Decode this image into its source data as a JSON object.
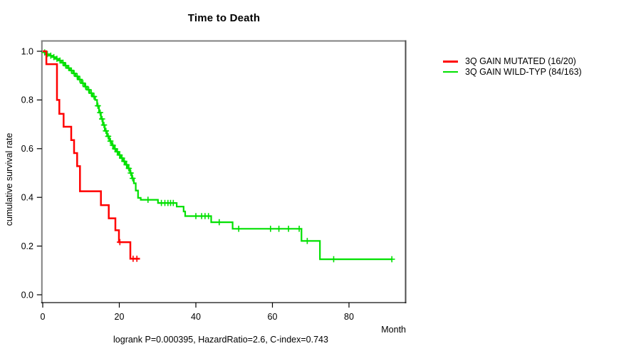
{
  "figure": {
    "title": "Time to Death",
    "x_axis_label": "Month",
    "y_axis_label": "cumulative survival rate",
    "annotation": "logrank P=0.000395, HazardRatio=2.6, C-index=0.743"
  },
  "legend": {
    "items": [
      {
        "label": "3Q GAIN MUTATED (16/20)",
        "color": "#ff0000"
      },
      {
        "label": "3Q GAIN WILD-TYP (84/163)",
        "color": "#00e000"
      }
    ]
  },
  "chart_data": {
    "type": "line",
    "subtype": "kaplan-meier-step",
    "title": "Time to Death",
    "xlabel": "Month",
    "ylabel": "cumulative survival rate",
    "stats_annotation": "logrank P=0.000395, HazardRatio=2.6, C-index=0.743",
    "xlim": [
      0,
      95
    ],
    "ylim": [
      0,
      1.0
    ],
    "x_ticks": [
      0,
      20,
      40,
      60,
      80
    ],
    "x_tick_labels": [
      "0",
      "20",
      "40",
      "60",
      "80"
    ],
    "y_ticks": [
      0.0,
      0.2,
      0.4,
      0.6,
      0.8,
      1.0
    ],
    "y_tick_labels": [
      "0.0",
      "0.2",
      "0.4",
      "0.6",
      "0.8",
      "1.0"
    ],
    "grid": false,
    "legend_position": "outside-top-right",
    "series": [
      {
        "name": "3Q GAIN WILD-TYP (84/163)",
        "color": "#00e000",
        "line_width": 2.2,
        "steps": [
          [
            0,
            1.0
          ],
          [
            0.45,
            0.995
          ],
          [
            0.9,
            0.988
          ],
          [
            1.7,
            0.982
          ],
          [
            2.5,
            0.976
          ],
          [
            3.3,
            0.969
          ],
          [
            4.1,
            0.962
          ],
          [
            4.9,
            0.953
          ],
          [
            5.7,
            0.941
          ],
          [
            6.4,
            0.931
          ],
          [
            7.1,
            0.921
          ],
          [
            7.9,
            0.909
          ],
          [
            8.6,
            0.897
          ],
          [
            9.3,
            0.884
          ],
          [
            10.1,
            0.869
          ],
          [
            10.9,
            0.855
          ],
          [
            11.6,
            0.842
          ],
          [
            12.3,
            0.828
          ],
          [
            13.0,
            0.814
          ],
          [
            13.7,
            0.8
          ],
          [
            14.2,
            0.776
          ],
          [
            14.7,
            0.748
          ],
          [
            15.2,
            0.722
          ],
          [
            15.7,
            0.697
          ],
          [
            16.2,
            0.673
          ],
          [
            16.8,
            0.651
          ],
          [
            17.4,
            0.631
          ],
          [
            18.0,
            0.614
          ],
          [
            18.6,
            0.599
          ],
          [
            19.2,
            0.587
          ],
          [
            19.8,
            0.574
          ],
          [
            20.4,
            0.561
          ],
          [
            21.0,
            0.548
          ],
          [
            21.6,
            0.534
          ],
          [
            22.2,
            0.519
          ],
          [
            22.8,
            0.5
          ],
          [
            23.3,
            0.478
          ],
          [
            23.8,
            0.458
          ],
          [
            24.3,
            0.428
          ],
          [
            24.9,
            0.398
          ],
          [
            25.6,
            0.39
          ],
          [
            30.1,
            0.377
          ],
          [
            35.0,
            0.362
          ],
          [
            36.8,
            0.342
          ],
          [
            37.2,
            0.323
          ],
          [
            44.0,
            0.298
          ],
          [
            49.6,
            0.271
          ],
          [
            67.6,
            0.221
          ],
          [
            72.4,
            0.146
          ]
        ],
        "end_month": 91.2,
        "censors": [
          [
            0.5,
            0.995
          ],
          [
            1.2,
            0.988
          ],
          [
            2.1,
            0.982
          ],
          [
            2.9,
            0.976
          ],
          [
            3.7,
            0.969
          ],
          [
            4.5,
            0.962
          ],
          [
            5.3,
            0.953
          ],
          [
            6.0,
            0.941
          ],
          [
            6.8,
            0.931
          ],
          [
            7.5,
            0.921
          ],
          [
            8.2,
            0.909
          ],
          [
            9.0,
            0.897
          ],
          [
            9.7,
            0.884
          ],
          [
            10.5,
            0.869
          ],
          [
            11.2,
            0.855
          ],
          [
            12.0,
            0.842
          ],
          [
            12.7,
            0.828
          ],
          [
            13.4,
            0.814
          ],
          [
            14.4,
            0.776
          ],
          [
            15.0,
            0.748
          ],
          [
            15.5,
            0.722
          ],
          [
            16.0,
            0.697
          ],
          [
            16.5,
            0.673
          ],
          [
            17.1,
            0.651
          ],
          [
            17.7,
            0.631
          ],
          [
            18.3,
            0.614
          ],
          [
            18.9,
            0.599
          ],
          [
            19.5,
            0.587
          ],
          [
            20.1,
            0.574
          ],
          [
            20.7,
            0.561
          ],
          [
            21.3,
            0.548
          ],
          [
            21.9,
            0.534
          ],
          [
            22.5,
            0.519
          ],
          [
            23.0,
            0.5
          ],
          [
            23.5,
            0.478
          ],
          [
            27.5,
            0.39
          ],
          [
            31.0,
            0.377
          ],
          [
            31.9,
            0.377
          ],
          [
            32.7,
            0.377
          ],
          [
            33.4,
            0.377
          ],
          [
            34.1,
            0.377
          ],
          [
            40.0,
            0.323
          ],
          [
            41.5,
            0.323
          ],
          [
            42.4,
            0.323
          ],
          [
            43.3,
            0.323
          ],
          [
            46.1,
            0.298
          ],
          [
            51.2,
            0.271
          ],
          [
            59.5,
            0.271
          ],
          [
            61.7,
            0.271
          ],
          [
            64.2,
            0.271
          ],
          [
            67.0,
            0.271
          ],
          [
            69.1,
            0.221
          ],
          [
            76.0,
            0.146
          ],
          [
            91.2,
            0.146
          ]
        ]
      },
      {
        "name": "3Q GAIN MUTATED (16/20)",
        "color": "#ff0000",
        "line_width": 2.5,
        "steps": [
          [
            0,
            1.0
          ],
          [
            0.95,
            0.947
          ],
          [
            3.72,
            0.8
          ],
          [
            4.33,
            0.743
          ],
          [
            5.45,
            0.69
          ],
          [
            7.44,
            0.635
          ],
          [
            8.19,
            0.582
          ],
          [
            8.99,
            0.528
          ],
          [
            9.73,
            0.425
          ],
          [
            15.2,
            0.368
          ],
          [
            17.25,
            0.314
          ],
          [
            18.98,
            0.265
          ],
          [
            19.9,
            0.216
          ],
          [
            22.88,
            0.148
          ]
        ],
        "end_month": 25.4,
        "censors": [
          [
            20.15,
            0.216
          ],
          [
            23.6,
            0.148
          ],
          [
            24.6,
            0.148
          ]
        ]
      }
    ]
  }
}
